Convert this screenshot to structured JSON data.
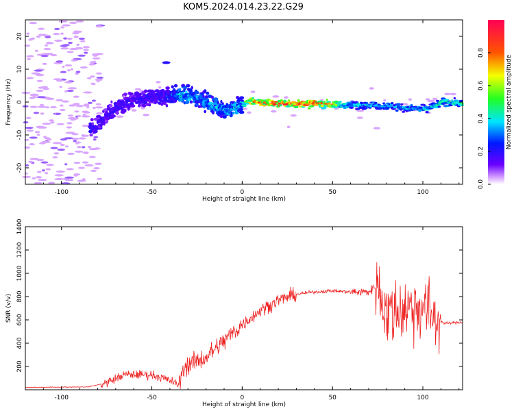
{
  "title": "KOM5.2024.014.23.22.G29",
  "charts": [
    {
      "type": "heatmap",
      "xlabel": "Height of straight line (km)",
      "ylabel": "Frequency (Hz)",
      "xlim": [
        -120,
        122
      ],
      "ylim": [
        -25,
        25
      ],
      "xticks": [
        -100,
        -50,
        0,
        50,
        100
      ],
      "yticks": [
        -20,
        -10,
        0,
        10,
        20
      ],
      "colorbar": {
        "label": "Normalized spectral amplitude",
        "range": [
          0,
          1
        ],
        "ticks": [
          "0.0",
          "0.2",
          "0.4",
          "0.6",
          "0.8"
        ]
      },
      "colors": {
        "low": "#d9a6ff",
        "mid": "#3b00ff",
        "high": "#ff0033"
      },
      "ridge": [
        {
          "x": -82,
          "y": -8,
          "a": 0.22
        },
        {
          "x": -75,
          "y": -4,
          "a": 0.2
        },
        {
          "x": -68,
          "y": -1,
          "a": 0.22
        },
        {
          "x": -60,
          "y": 0.5,
          "a": 0.2
        },
        {
          "x": -50,
          "y": 1.5,
          "a": 0.22
        },
        {
          "x": -42,
          "y": 1.8,
          "a": 0.26
        },
        {
          "x": -33,
          "y": 2.2,
          "a": 0.45
        },
        {
          "x": -24,
          "y": 1.2,
          "a": 0.38
        },
        {
          "x": -14,
          "y": -1.5,
          "a": 0.4
        },
        {
          "x": -6,
          "y": -2.5,
          "a": 0.42
        },
        {
          "x": 0,
          "y": -0.5,
          "a": 0.45
        },
        {
          "x": 5,
          "y": 0.2,
          "a": 0.85
        },
        {
          "x": 15,
          "y": -0.3,
          "a": 0.95
        },
        {
          "x": 30,
          "y": -0.5,
          "a": 1.0
        },
        {
          "x": 45,
          "y": -0.5,
          "a": 0.98
        },
        {
          "x": 58,
          "y": -1.0,
          "a": 0.45
        },
        {
          "x": 70,
          "y": -0.8,
          "a": 0.42
        },
        {
          "x": 80,
          "y": -1.2,
          "a": 0.4
        },
        {
          "x": 92,
          "y": -2.0,
          "a": 0.42
        },
        {
          "x": 102,
          "y": -2.2,
          "a": 0.45
        },
        {
          "x": 112,
          "y": 0.2,
          "a": 0.5
        },
        {
          "x": 122,
          "y": -0.5,
          "a": 0.5
        }
      ]
    },
    {
      "type": "line",
      "xlabel": "Height of straight line (km)",
      "ylabel": "SNR (v/v)",
      "xlim": [
        -120,
        122
      ],
      "ylim": [
        0,
        1400
      ],
      "xticks": [
        -100,
        -50,
        0,
        50,
        100
      ],
      "yticks": [
        200,
        400,
        600,
        800,
        1000,
        1200,
        1400
      ],
      "series_color": "#ee2222",
      "trend": [
        {
          "x": -120,
          "y": 20
        },
        {
          "x": -85,
          "y": 25
        },
        {
          "x": -75,
          "y": 60
        },
        {
          "x": -65,
          "y": 130
        },
        {
          "x": -50,
          "y": 130
        },
        {
          "x": -40,
          "y": 80
        },
        {
          "x": -35,
          "y": 40
        },
        {
          "x": -32,
          "y": 200
        },
        {
          "x": -20,
          "y": 280
        },
        {
          "x": -10,
          "y": 420
        },
        {
          "x": 0,
          "y": 560
        },
        {
          "x": 10,
          "y": 680
        },
        {
          "x": 20,
          "y": 770
        },
        {
          "x": 30,
          "y": 820
        },
        {
          "x": 40,
          "y": 840
        },
        {
          "x": 50,
          "y": 850
        },
        {
          "x": 60,
          "y": 840
        },
        {
          "x": 70,
          "y": 840
        },
        {
          "x": 75,
          "y": 900
        },
        {
          "x": 80,
          "y": 650
        },
        {
          "x": 90,
          "y": 700
        },
        {
          "x": 100,
          "y": 720
        },
        {
          "x": 108,
          "y": 600
        },
        {
          "x": 112,
          "y": 570
        },
        {
          "x": 122,
          "y": 580
        }
      ]
    }
  ]
}
